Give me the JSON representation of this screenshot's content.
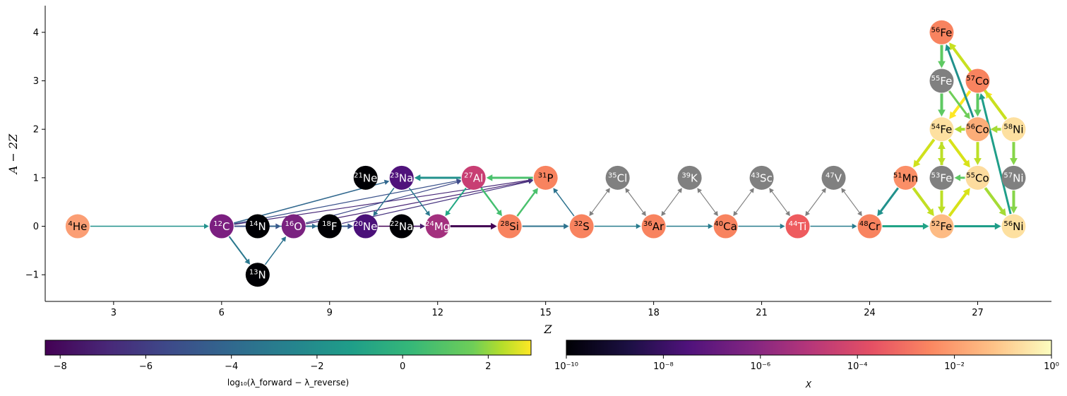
{
  "chart_data": {
    "type": "network",
    "xlabel": "Z",
    "ylabel": "A − 2Z",
    "xlim": [
      1.1,
      29.05
    ],
    "ylim": [
      -1.55,
      4.55
    ],
    "xticks": [
      3,
      6,
      9,
      12,
      15,
      18,
      21,
      24,
      27
    ],
    "yticks": [
      -1,
      0,
      1,
      2,
      3,
      4
    ],
    "nodes": [
      {
        "id": "he4",
        "mass": "4",
        "sym": "He",
        "Z": 2,
        "N": 0,
        "color": "#fb9e74"
      },
      {
        "id": "c12",
        "mass": "12",
        "sym": "C",
        "Z": 6,
        "N": 0,
        "color": "#7b1f80"
      },
      {
        "id": "n13",
        "mass": "13",
        "sym": "N",
        "Z": 7,
        "N": -1,
        "color": "#000004"
      },
      {
        "id": "n14",
        "mass": "14",
        "sym": "N",
        "Z": 7,
        "N": 0,
        "color": "#000004"
      },
      {
        "id": "o16",
        "mass": "16",
        "sym": "O",
        "Z": 8,
        "N": 0,
        "color": "#7a2280"
      },
      {
        "id": "f18",
        "mass": "18",
        "sym": "F",
        "Z": 9,
        "N": 0,
        "color": "#000004"
      },
      {
        "id": "ne20",
        "mass": "20",
        "sym": "Ne",
        "Z": 10,
        "N": 0,
        "color": "#4a1079"
      },
      {
        "id": "ne21",
        "mass": "21",
        "sym": "Ne",
        "Z": 10,
        "N": 1,
        "color": "#000004"
      },
      {
        "id": "na22",
        "mass": "22",
        "sym": "Na",
        "Z": 11,
        "N": 0,
        "color": "#000004"
      },
      {
        "id": "na23",
        "mass": "23",
        "sym": "Na",
        "Z": 11,
        "N": 1,
        "color": "#4f127b"
      },
      {
        "id": "mg24",
        "mass": "24",
        "sym": "Mg",
        "Z": 12,
        "N": 0,
        "color": "#a3307e"
      },
      {
        "id": "al27",
        "mass": "27",
        "sym": "Al",
        "Z": 13,
        "N": 1,
        "color": "#c83e73"
      },
      {
        "id": "si28",
        "mass": "28",
        "sym": "Si",
        "Z": 14,
        "N": 0,
        "color": "#f8835f"
      },
      {
        "id": "p31",
        "mass": "31",
        "sym": "P",
        "Z": 15,
        "N": 1,
        "color": "#f8835f"
      },
      {
        "id": "s32",
        "mass": "32",
        "sym": "S",
        "Z": 16,
        "N": 0,
        "color": "#f8835f"
      },
      {
        "id": "cl35",
        "mass": "35",
        "sym": "Cl",
        "Z": 17,
        "N": 1,
        "color": "#808080"
      },
      {
        "id": "ar36",
        "mass": "36",
        "sym": "Ar",
        "Z": 18,
        "N": 0,
        "color": "#f8835f"
      },
      {
        "id": "k39",
        "mass": "39",
        "sym": "K",
        "Z": 19,
        "N": 1,
        "color": "#808080"
      },
      {
        "id": "ca40",
        "mass": "40",
        "sym": "Ca",
        "Z": 20,
        "N": 0,
        "color": "#f8835f"
      },
      {
        "id": "sc43",
        "mass": "43",
        "sym": "Sc",
        "Z": 21,
        "N": 1,
        "color": "#808080"
      },
      {
        "id": "ti44",
        "mass": "44",
        "sym": "Ti",
        "Z": 22,
        "N": 0,
        "color": "#ee5b5e"
      },
      {
        "id": "v47",
        "mass": "47",
        "sym": "V",
        "Z": 23,
        "N": 1,
        "color": "#808080"
      },
      {
        "id": "cr48",
        "mass": "48",
        "sym": "Cr",
        "Z": 24,
        "N": 0,
        "color": "#f8835f"
      },
      {
        "id": "mn51",
        "mass": "51",
        "sym": "Mn",
        "Z": 25,
        "N": 1,
        "color": "#fb8f67"
      },
      {
        "id": "fe52",
        "mass": "52",
        "sym": "Fe",
        "Z": 26,
        "N": 0,
        "color": "#fdbb84"
      },
      {
        "id": "fe53",
        "mass": "53",
        "sym": "Fe",
        "Z": 26,
        "N": 1,
        "color": "#808080"
      },
      {
        "id": "fe54",
        "mass": "54",
        "sym": "Fe",
        "Z": 26,
        "N": 2,
        "color": "#fde0a0"
      },
      {
        "id": "fe55",
        "mass": "55",
        "sym": "Fe",
        "Z": 26,
        "N": 3,
        "color": "#808080"
      },
      {
        "id": "fe56",
        "mass": "56",
        "sym": "Fe",
        "Z": 26,
        "N": 4,
        "color": "#f8835f"
      },
      {
        "id": "co55",
        "mass": "55",
        "sym": "Co",
        "Z": 27,
        "N": 1,
        "color": "#fddc9e"
      },
      {
        "id": "co56",
        "mass": "56",
        "sym": "Co",
        "Z": 27,
        "N": 2,
        "color": "#fcad78"
      },
      {
        "id": "co57",
        "mass": "57",
        "sym": "Co",
        "Z": 27,
        "N": 3,
        "color": "#f8835f"
      },
      {
        "id": "ni56",
        "mass": "56",
        "sym": "Ni",
        "Z": 28,
        "N": 0,
        "color": "#fde0a0"
      },
      {
        "id": "ni57",
        "mass": "57",
        "sym": "Ni",
        "Z": 28,
        "N": 1,
        "color": "#808080"
      },
      {
        "id": "ni58",
        "mass": "58",
        "sym": "Ni",
        "Z": 28,
        "N": 2,
        "color": "#fde0a0"
      }
    ],
    "edges": [
      {
        "from": "he4",
        "to": "c12",
        "color": "#21918c",
        "w": 1.5
      },
      {
        "from": "c12",
        "to": "n13",
        "color": "#2a788e",
        "w": 2
      },
      {
        "from": "n13",
        "to": "o16",
        "color": "#2c728e",
        "w": 1.5
      },
      {
        "from": "c12",
        "to": "o16",
        "color": "#3b528b",
        "w": 2
      },
      {
        "from": "n14",
        "to": "f18",
        "color": "#31688e",
        "w": 1.5
      },
      {
        "from": "o16",
        "to": "ne20",
        "color": "#2c728e",
        "w": 2
      },
      {
        "from": "f18",
        "to": "ne20",
        "color": "#3b528b",
        "w": 1.5
      },
      {
        "from": "ne20",
        "to": "mg24",
        "color": "#440154",
        "w": 1.5
      },
      {
        "from": "na22",
        "to": "mg24",
        "color": "#481a6c",
        "w": 1.5
      },
      {
        "from": "mg24",
        "to": "si28",
        "color": "#440154",
        "w": 3
      },
      {
        "from": "si28",
        "to": "s32",
        "color": "#2c728e",
        "w": 2
      },
      {
        "from": "s32",
        "to": "ar36",
        "color": "#287c8e",
        "w": 1.5
      },
      {
        "from": "ar36",
        "to": "ca40",
        "color": "#287c8e",
        "w": 1.5
      },
      {
        "from": "ca40",
        "to": "ti44",
        "color": "#287c8e",
        "w": 1.5
      },
      {
        "from": "ti44",
        "to": "cr48",
        "color": "#287c8e",
        "w": 1.5
      },
      {
        "from": "cr48",
        "to": "fe52",
        "color": "#20a386",
        "w": 3
      },
      {
        "from": "fe52",
        "to": "ni56",
        "color": "#1f9e89",
        "w": 3
      },
      {
        "from": "c12",
        "to": "na23",
        "color": "#31688e",
        "w": 1.5
      },
      {
        "from": "c12",
        "to": "al27",
        "color": "#3b528b",
        "w": 1.2
      },
      {
        "from": "c12",
        "to": "p31",
        "color": "#482878",
        "w": 1.2
      },
      {
        "from": "o16",
        "to": "al27",
        "color": "#3e4989",
        "w": 1.2
      },
      {
        "from": "o16",
        "to": "p31",
        "color": "#482475",
        "w": 1.2
      },
      {
        "from": "f18",
        "to": "p31",
        "color": "#46337f",
        "w": 1.2
      },
      {
        "from": "na23",
        "to": "ne20",
        "color": "#2c728e",
        "w": 1.5
      },
      {
        "from": "na23",
        "to": "mg24",
        "color": "#2a788e",
        "w": 1.5
      },
      {
        "from": "al27",
        "to": "na23",
        "color": "#21918c",
        "w": 3
      },
      {
        "from": "al27",
        "to": "mg24",
        "color": "#22a884",
        "w": 2
      },
      {
        "from": "al27",
        "to": "si28",
        "color": "#44bf70",
        "w": 2.5
      },
      {
        "from": "p31",
        "to": "al27",
        "color": "#4ac16d",
        "w": 3
      },
      {
        "from": "si28",
        "to": "p31",
        "color": "#4ac16d",
        "w": 2.5
      },
      {
        "from": "s32",
        "to": "p31",
        "color": "#2c728e",
        "w": 1.5
      },
      {
        "from": "s32",
        "to": "cl35",
        "color": "#808080",
        "w": 1.2,
        "both": true
      },
      {
        "from": "cl35",
        "to": "ar36",
        "color": "#808080",
        "w": 1.2,
        "both": true
      },
      {
        "from": "ar36",
        "to": "k39",
        "color": "#808080",
        "w": 1.2,
        "both": true
      },
      {
        "from": "k39",
        "to": "ca40",
        "color": "#808080",
        "w": 1.2,
        "both": true
      },
      {
        "from": "ca40",
        "to": "sc43",
        "color": "#808080",
        "w": 1.2,
        "both": true
      },
      {
        "from": "sc43",
        "to": "ti44",
        "color": "#808080",
        "w": 1.2,
        "both": true
      },
      {
        "from": "ti44",
        "to": "v47",
        "color": "#808080",
        "w": 1.2,
        "both": true
      },
      {
        "from": "v47",
        "to": "cr48",
        "color": "#808080",
        "w": 1.2,
        "both": true
      },
      {
        "from": "mn51",
        "to": "cr48",
        "color": "#21918c",
        "w": 3
      },
      {
        "from": "fe54",
        "to": "mn51",
        "color": "#d0e11c",
        "w": 4
      },
      {
        "from": "mn51",
        "to": "fe52",
        "color": "#c2df23",
        "w": 4
      },
      {
        "from": "fe53",
        "to": "fe52",
        "color": "#bddf26",
        "w": 4
      },
      {
        "from": "fe53",
        "to": "fe54",
        "color": "#bddf26",
        "w": 4
      },
      {
        "from": "fe54",
        "to": "fe53",
        "color": "#bddf26",
        "w": 4
      },
      {
        "from": "fe55",
        "to": "fe54",
        "color": "#5ec962",
        "w": 4
      },
      {
        "from": "fe56",
        "to": "fe55",
        "color": "#5ec962",
        "w": 4
      },
      {
        "from": "co55",
        "to": "fe53",
        "color": "#5ec962",
        "w": 3
      },
      {
        "from": "fe52",
        "to": "co55",
        "color": "#d8e219",
        "w": 4
      },
      {
        "from": "fe54",
        "to": "co55",
        "color": "#d8e219",
        "w": 4
      },
      {
        "from": "co56",
        "to": "fe54",
        "color": "#addc30",
        "w": 4
      },
      {
        "from": "co56",
        "to": "co55",
        "color": "#bddf26",
        "w": 4
      },
      {
        "from": "co57",
        "to": "co56",
        "color": "#5ec962",
        "w": 4
      },
      {
        "from": "co57",
        "to": "fe54",
        "color": "#fde725",
        "w": 4
      },
      {
        "from": "fe55",
        "to": "co56",
        "color": "#6ece58",
        "w": 3
      },
      {
        "from": "ni58",
        "to": "co57",
        "color": "#fde725",
        "w": 4
      },
      {
        "from": "co56",
        "to": "fe56",
        "color": "#21918c",
        "w": 3
      },
      {
        "from": "ni56",
        "to": "co57",
        "color": "#1f9e89",
        "w": 3
      },
      {
        "from": "ni58",
        "to": "fe56",
        "color": "#c8e020",
        "w": 4
      },
      {
        "from": "ni58",
        "to": "ni57",
        "color": "#86d549",
        "w": 4
      },
      {
        "from": "ni57",
        "to": "ni56",
        "color": "#86d549",
        "w": 4
      },
      {
        "from": "co55",
        "to": "ni56",
        "color": "#a5db36",
        "w": 4
      },
      {
        "from": "ni58",
        "to": "co56",
        "color": "#a5db36",
        "w": 4
      },
      {
        "from": "fe52",
        "to": "ni56",
        "color": "#1f9e89",
        "w": 3
      }
    ],
    "colorbars": [
      {
        "name": "rate",
        "label": "log₁₀(λ_forward − λ_reverse)",
        "ticks": [
          "−8",
          "−6",
          "−4",
          "−2",
          "0",
          "2"
        ],
        "tick_values": [
          -8,
          -6,
          -4,
          -2,
          0,
          2
        ],
        "range": [
          -8.35,
          3.0
        ],
        "colormap": "viridis"
      },
      {
        "name": "abundance",
        "label": "X",
        "ticks": [
          "10⁻¹⁰",
          "10⁻⁸",
          "10⁻⁶",
          "10⁻⁴",
          "10⁻²",
          "10⁰"
        ],
        "tick_values": [
          -10,
          -8,
          -6,
          -4,
          -2,
          0
        ],
        "range": [
          -10,
          0
        ],
        "colormap": "magma"
      }
    ]
  }
}
